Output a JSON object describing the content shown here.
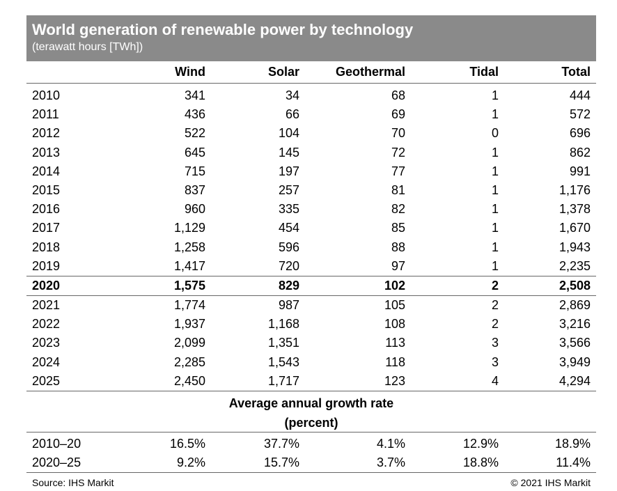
{
  "chart_data": {
    "type": "table",
    "title": "World generation of renewable power by technology",
    "subtitle": "(terawatt hours [TWh])",
    "columns": [
      "",
      "Wind",
      "Solar",
      "Geothermal",
      "Tidal",
      "Total"
    ],
    "rows": [
      {
        "year": "2010",
        "wind": "341",
        "solar": "34",
        "geothermal": "68",
        "tidal": "1",
        "total": "444"
      },
      {
        "year": "2011",
        "wind": "436",
        "solar": "66",
        "geothermal": "69",
        "tidal": "1",
        "total": "572"
      },
      {
        "year": "2012",
        "wind": "522",
        "solar": "104",
        "geothermal": "70",
        "tidal": "0",
        "total": "696"
      },
      {
        "year": "2013",
        "wind": "645",
        "solar": "145",
        "geothermal": "72",
        "tidal": "1",
        "total": "862"
      },
      {
        "year": "2014",
        "wind": "715",
        "solar": "197",
        "geothermal": "77",
        "tidal": "1",
        "total": "991"
      },
      {
        "year": "2015",
        "wind": "837",
        "solar": "257",
        "geothermal": "81",
        "tidal": "1",
        "total": "1,176"
      },
      {
        "year": "2016",
        "wind": "960",
        "solar": "335",
        "geothermal": "82",
        "tidal": "1",
        "total": "1,378"
      },
      {
        "year": "2017",
        "wind": "1,129",
        "solar": "454",
        "geothermal": "85",
        "tidal": "1",
        "total": "1,670"
      },
      {
        "year": "2018",
        "wind": "1,258",
        "solar": "596",
        "geothermal": "88",
        "tidal": "1",
        "total": "1,943"
      },
      {
        "year": "2019",
        "wind": "1,417",
        "solar": "720",
        "geothermal": "97",
        "tidal": "1",
        "total": "2,235"
      },
      {
        "year": "2020",
        "wind": "1,575",
        "solar": "829",
        "geothermal": "102",
        "tidal": "2",
        "total": "2,508"
      },
      {
        "year": "2021",
        "wind": "1,774",
        "solar": "987",
        "geothermal": "105",
        "tidal": "2",
        "total": "2,869"
      },
      {
        "year": "2022",
        "wind": "1,937",
        "solar": "1,168",
        "geothermal": "108",
        "tidal": "2",
        "total": "3,216"
      },
      {
        "year": "2023",
        "wind": "2,099",
        "solar": "1,351",
        "geothermal": "113",
        "tidal": "3",
        "total": "3,566"
      },
      {
        "year": "2024",
        "wind": "2,285",
        "solar": "1,543",
        "geothermal": "118",
        "tidal": "3",
        "total": "3,949"
      },
      {
        "year": "2025",
        "wind": "2,450",
        "solar": "1,717",
        "geothermal": "123",
        "tidal": "4",
        "total": "4,294"
      }
    ],
    "highlight_year": "2020",
    "growth_title": "Average annual growth rate",
    "growth_unit": "(percent)",
    "growth_rows": [
      {
        "period": "2010–20",
        "wind": "16.5%",
        "solar": "37.7%",
        "geothermal": "4.1%",
        "tidal": "12.9%",
        "total": "18.9%"
      },
      {
        "period": "2020–25",
        "wind": "9.2%",
        "solar": "15.7%",
        "geothermal": "3.7%",
        "tidal": "18.8%",
        "total": "11.4%"
      }
    ],
    "source": "Source: IHS Markit",
    "copyright": "© 2021 IHS Markit"
  },
  "colors": {
    "header_bg": "#8a8a8a",
    "header_text": "#ffffff",
    "rule": "#666666"
  }
}
